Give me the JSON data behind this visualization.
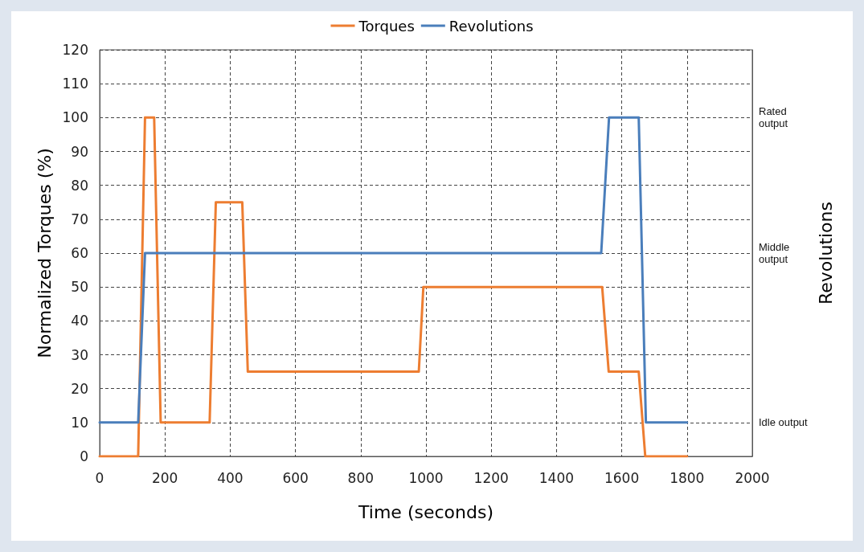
{
  "chart_data": {
    "type": "line",
    "xlabel": "Time (seconds)",
    "ylabel": "Normalized Torques (%)",
    "y2label": "Revolutions",
    "y2_categories": [
      null,
      null,
      "Rated output",
      null,
      null,
      null,
      "Middle output",
      null,
      null,
      null,
      null,
      "Idle output",
      null
    ],
    "series": [
      {
        "name": "Torques",
        "color": "#ed7d31",
        "x": [
          0,
          118,
          139,
          167,
          187,
          337,
          356,
          437,
          454,
          978,
          992,
          1540,
          1560,
          1652,
          1672,
          1800
        ],
        "values": [
          0,
          0,
          100,
          100,
          10,
          10,
          75,
          75,
          25,
          25,
          50,
          50,
          25,
          25,
          0,
          0
        ]
      },
      {
        "name": "Revolutions",
        "color": "#4a7ebb",
        "x": [
          0,
          118,
          139,
          1537,
          1561,
          1652,
          1674,
          1800
        ],
        "values": [
          10,
          10,
          60,
          60,
          100,
          100,
          10,
          10
        ]
      }
    ],
    "xlim": [
      0,
      2000
    ],
    "xticks": [
      0,
      200,
      400,
      600,
      800,
      1000,
      1200,
      1400,
      1600,
      1800,
      2000
    ],
    "ylim": [
      0,
      120
    ],
    "yticks": [
      0,
      10,
      20,
      30,
      40,
      50,
      60,
      70,
      80,
      90,
      100,
      110,
      120
    ],
    "grid": true,
    "legend": "top",
    "marker": "none",
    "line_style": "solid"
  }
}
